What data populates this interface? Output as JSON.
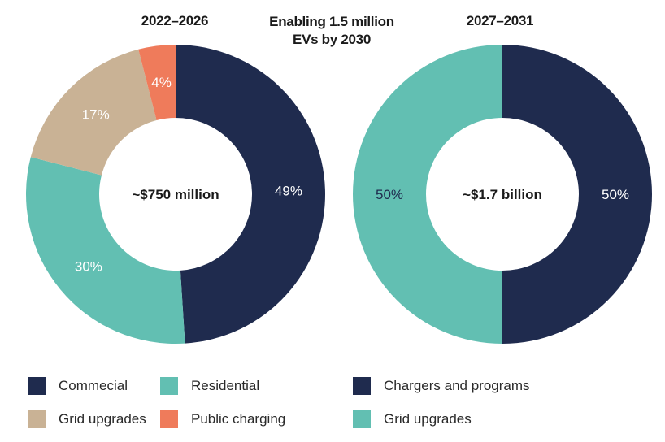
{
  "chart_data": [
    {
      "type": "pie",
      "subtype": "donut",
      "title": "2022–2026",
      "center_label": "~$750 million",
      "slices": [
        {
          "name": "Commecial",
          "value": 49,
          "label": "49%",
          "color": "#1f2b4e",
          "label_color": "#ffffff"
        },
        {
          "name": "Residential",
          "value": 30,
          "label": "30%",
          "color": "#62bfb2",
          "label_color": "#ffffff"
        },
        {
          "name": "Grid upgrades",
          "value": 17,
          "label": "17%",
          "color": "#c9b295",
          "label_color": "#ffffff"
        },
        {
          "name": "Public charging",
          "value": 4,
          "label": "4%",
          "color": "#ef7b5b",
          "label_color": "#ffffff"
        }
      ]
    },
    {
      "type": "pie",
      "subtype": "donut",
      "title": "2027–2031",
      "center_label": "~$1.7 billion",
      "slices": [
        {
          "name": "Chargers and programs",
          "value": 50,
          "label": "50%",
          "color": "#1f2b4e",
          "label_color": "#ffffff"
        },
        {
          "name": "Grid upgrades",
          "value": 50,
          "label": "50%",
          "color": "#62bfb2",
          "label_color": "#1f2b4e"
        }
      ]
    }
  ],
  "center_title": [
    "Enabling 1.5 million",
    "EVs by 2030"
  ],
  "legend_left": [
    {
      "label": "Commecial",
      "color": "#1f2b4e"
    },
    {
      "label": "Residential",
      "color": "#62bfb2"
    },
    {
      "label": "Grid upgrades",
      "color": "#c9b295"
    },
    {
      "label": "Public charging",
      "color": "#ef7b5b"
    }
  ],
  "legend_right": [
    {
      "label": "Chargers and programs",
      "color": "#1f2b4e"
    },
    {
      "label": "Grid upgrades",
      "color": "#62bfb2"
    }
  ]
}
